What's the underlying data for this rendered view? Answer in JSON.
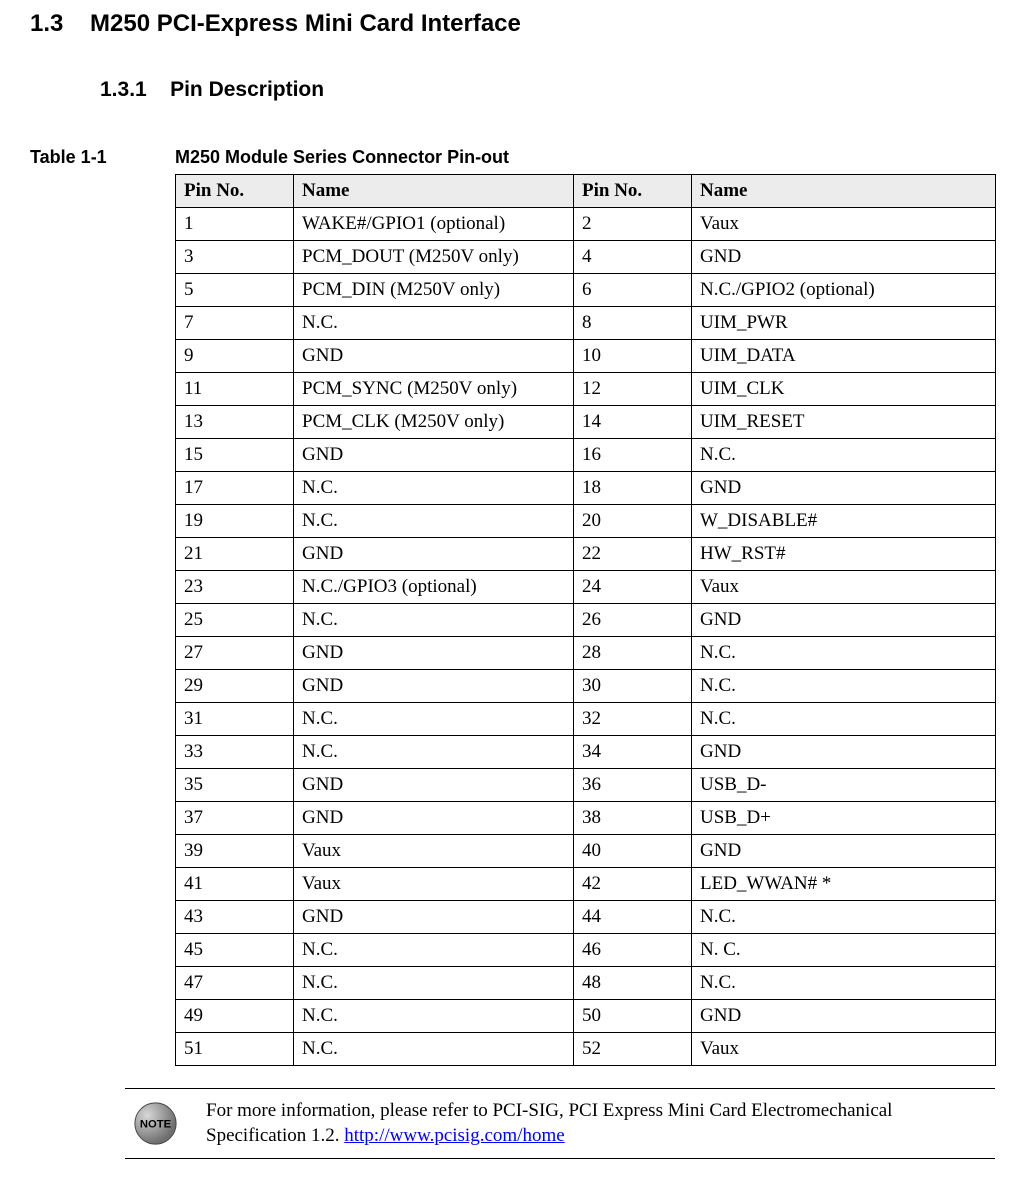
{
  "section": {
    "number": "1.3",
    "title": "M250 PCI-Express Mini Card Interface"
  },
  "subsection": {
    "number": "1.3.1",
    "title": "Pin Description"
  },
  "table": {
    "label": "Table 1-1",
    "caption": "M250 Module Series Connector Pin-out",
    "headers": [
      "Pin No.",
      "Name",
      "Pin No.",
      "Name"
    ],
    "rows": [
      [
        "1",
        "WAKE#/GPIO1 (optional)",
        "2",
        "Vaux"
      ],
      [
        "3",
        "PCM_DOUT (M250V only)",
        "4",
        "GND"
      ],
      [
        "5",
        "PCM_DIN (M250V only)",
        "6",
        "N.C./GPIO2 (optional)"
      ],
      [
        "7",
        "N.C.",
        "8",
        "UIM_PWR"
      ],
      [
        "9",
        "GND",
        "10",
        "UIM_DATA"
      ],
      [
        "11",
        "PCM_SYNC (M250V only)",
        "12",
        "UIM_CLK"
      ],
      [
        "13",
        "PCM_CLK (M250V only)",
        "14",
        "UIM_RESET"
      ],
      [
        "15",
        "GND",
        "16",
        "N.C."
      ],
      [
        "17",
        "N.C.",
        "18",
        "GND"
      ],
      [
        "19",
        "N.C.",
        "20",
        "W_DISABLE#"
      ],
      [
        "21",
        "GND",
        "22",
        "HW_RST#"
      ],
      [
        "23",
        "N.C./GPIO3 (optional)",
        "24",
        "Vaux"
      ],
      [
        "25",
        "N.C.",
        "26",
        "GND"
      ],
      [
        "27",
        "GND",
        "28",
        "N.C."
      ],
      [
        "29",
        "GND",
        "30",
        "N.C."
      ],
      [
        "31",
        "N.C.",
        "32",
        "N.C."
      ],
      [
        "33",
        "N.C.",
        "34",
        "GND"
      ],
      [
        "35",
        "GND",
        "36",
        "USB_D-"
      ],
      [
        "37",
        "GND",
        "38",
        "USB_D+"
      ],
      [
        "39",
        "Vaux",
        "40",
        "GND"
      ],
      [
        "41",
        "Vaux",
        "42",
        "LED_WWAN# *"
      ],
      [
        "43",
        "GND",
        "44",
        "N.C."
      ],
      [
        "45",
        "N.C.",
        "46",
        "N. C."
      ],
      [
        "47",
        "N.C.",
        "48",
        "N.C."
      ],
      [
        "49",
        "N.C.",
        "50",
        "GND"
      ],
      [
        "51",
        "N.C.",
        "52",
        "Vaux"
      ]
    ]
  },
  "note": {
    "text_before_link": "For more information, please refer to PCI-SIG, PCI Express Mini Card Electromechanical Specification 1.2. ",
    "link_text": "http://www.pcisig.com/home"
  }
}
